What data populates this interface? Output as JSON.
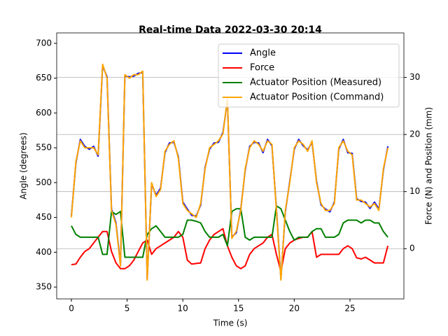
{
  "chart_data": {
    "type": "line",
    "title": "Real-time Data 2022-03-30 20:14",
    "x_label": "Time (s)",
    "y_label": "Angle (degrees)",
    "y2_label": "Force (N) and Position (mm)",
    "x": [
      0,
      0.4,
      0.8,
      1.2,
      1.6,
      2.0,
      2.4,
      2.8,
      3.2,
      3.6,
      4.0,
      4.4,
      4.8,
      5.2,
      5.6,
      6.0,
      6.4,
      6.8,
      7.2,
      7.6,
      8.0,
      8.4,
      8.8,
      9.2,
      9.6,
      10.0,
      10.4,
      10.8,
      11.2,
      11.6,
      12.0,
      12.4,
      12.8,
      13.2,
      13.6,
      14.0,
      14.4,
      14.8,
      15.2,
      15.6,
      16.0,
      16.4,
      16.8,
      17.2,
      17.6,
      18.0,
      18.4,
      18.8,
      19.2,
      19.6,
      20.0,
      20.4,
      20.8,
      21.2,
      21.6,
      22.0,
      22.4,
      22.8,
      23.2,
      23.6,
      24.0,
      24.4,
      24.8,
      25.2,
      25.6,
      26.0,
      26.4,
      26.8,
      27.2,
      27.6,
      28.0,
      28.4
    ],
    "series": [
      {
        "name": "Angle",
        "color": "#0000ff",
        "axis": "y",
        "values": [
          452,
          528,
          562,
          552,
          548,
          552,
          538,
          668,
          652,
          462,
          442,
          382,
          653,
          652,
          653,
          657,
          658,
          362,
          498,
          482,
          492,
          543,
          557,
          558,
          537,
          472,
          462,
          453,
          452,
          468,
          522,
          548,
          557,
          558,
          572,
          618,
          422,
          428,
          462,
          518,
          552,
          558,
          557,
          543,
          562,
          553,
          462,
          362,
          458,
          502,
          548,
          562,
          553,
          547,
          558,
          502,
          468,
          462,
          458,
          472,
          548,
          562,
          543,
          542,
          477,
          473,
          472,
          463,
          472,
          462,
          518,
          552
        ]
      },
      {
        "name": "Force",
        "color": "#ff0000",
        "axis": "y2",
        "values": [
          -2.8,
          -2.7,
          -1.5,
          -0.5,
          0,
          1,
          2,
          3,
          3,
          -0.5,
          -2.5,
          -3.5,
          -3.5,
          -3,
          -2,
          -0.5,
          1,
          1.5,
          -1,
          0,
          0.5,
          1,
          1.5,
          2,
          3,
          2,
          -2,
          -2.7,
          -2.6,
          -2.5,
          0,
          1.5,
          2.5,
          3,
          3.5,
          0.5,
          -1.5,
          -3,
          -3.5,
          -3,
          -1,
          0,
          0.5,
          1,
          2,
          2.5,
          -1,
          -4,
          0,
          1,
          1.5,
          1.8,
          2,
          2,
          3,
          -1.5,
          -1,
          -1,
          -1,
          -1,
          -1,
          0,
          0.5,
          0,
          -1.6,
          -1.8,
          -1.5,
          -2,
          -2.5,
          -2.5,
          -2.5,
          0.5
        ]
      },
      {
        "name": "Actuator Position (Measured)",
        "color": "#008000",
        "axis": "y2",
        "values": [
          4,
          2.5,
          2,
          2,
          2,
          2,
          2,
          -1,
          -1,
          6.5,
          6,
          6.5,
          -1.5,
          -1.5,
          -1.5,
          -1.5,
          -1.5,
          2.5,
          3.5,
          4,
          3,
          2,
          2,
          2,
          2,
          2.5,
          5,
          5,
          4.8,
          4.5,
          3,
          2,
          2,
          2,
          2.5,
          0.5,
          6.5,
          7,
          7,
          2,
          1.5,
          2,
          2,
          2,
          2,
          2,
          7.5,
          7,
          5,
          3,
          1.5,
          2,
          2,
          2,
          3,
          3.5,
          3.5,
          2,
          2,
          2,
          2.5,
          4.5,
          5,
          5,
          5,
          4.5,
          5,
          5,
          4.5,
          4.5,
          3,
          2
        ]
      },
      {
        "name": "Actuator Position (Command)",
        "color": "#ffa500",
        "axis": "y",
        "values": [
          450,
          530,
          560,
          550,
          550,
          550,
          540,
          670,
          650,
          460,
          440,
          380,
          655,
          650,
          655,
          655,
          660,
          360,
          500,
          480,
          490,
          545,
          555,
          560,
          535,
          470,
          460,
          455,
          450,
          470,
          520,
          550,
          555,
          560,
          570,
          620,
          420,
          430,
          460,
          520,
          550,
          560,
          555,
          545,
          560,
          555,
          460,
          360,
          460,
          500,
          550,
          560,
          555,
          545,
          560,
          500,
          470,
          460,
          460,
          470,
          550,
          560,
          545,
          540,
          475,
          475,
          470,
          465,
          470,
          460,
          520,
          550
        ]
      }
    ],
    "xlim": [
      -1.32,
      29.84
    ],
    "xticks": [
      0,
      5,
      10,
      15,
      20,
      25
    ],
    "ylim": [
      333,
      715
    ],
    "yticks": [
      350,
      400,
      450,
      500,
      550,
      600,
      650,
      700
    ],
    "y2lim": [
      -8.8,
      37.8
    ],
    "y2ticks": [
      0,
      10,
      20,
      30
    ],
    "grid": "y2",
    "legend": "upper-right"
  }
}
